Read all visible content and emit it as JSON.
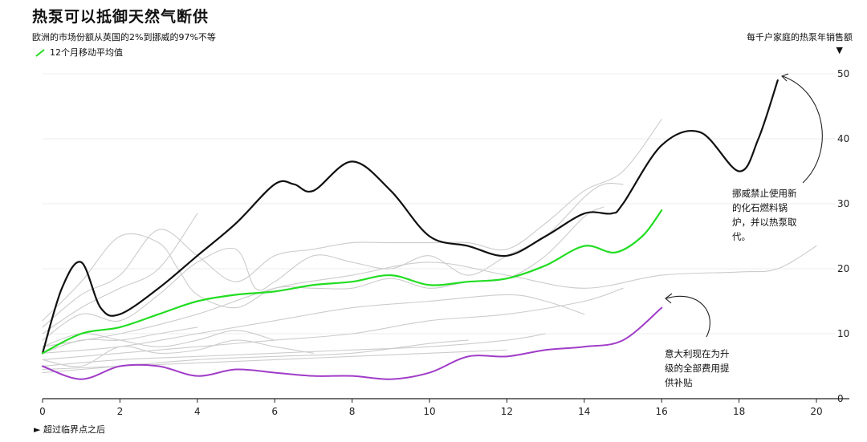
{
  "title": "热泵可以抵御天然气断供",
  "subtitle": "欧洲的市场份额从英国的2%到挪威的97%不等",
  "legend": {
    "label": "12个月移动平均值",
    "color": "#22dd22"
  },
  "ylabel": "每千户家庭的热泵年销售额",
  "ylabel_arrow": "▼",
  "xfoot": "► 超过临界点之后",
  "annotations": {
    "norway": "挪威禁止使用新的化石燃料锅炉，并以热泵取代。",
    "italy": "意大利现在为升级的全部费用提供补贴"
  },
  "chart_data": {
    "type": "line",
    "title": "热泵可以抵御天然气断供",
    "ylabel": "每千户家庭的热泵年销售额",
    "xlabel": "超过临界点之后",
    "xlim": [
      0,
      21
    ],
    "ylim": [
      0,
      50
    ],
    "x_ticks": [
      0,
      2,
      4,
      6,
      8,
      10,
      12,
      14,
      16,
      18,
      20
    ],
    "y_ticks": [
      0,
      10,
      20,
      30,
      40,
      50
    ],
    "grid": "horizontal",
    "series": [
      {
        "color": "#111111",
        "width": 2.2,
        "points": [
          [
            0,
            7
          ],
          [
            0.5,
            17
          ],
          [
            1,
            21
          ],
          [
            1.5,
            14
          ],
          [
            2,
            13
          ],
          [
            3,
            17
          ],
          [
            4,
            22
          ],
          [
            5,
            27
          ],
          [
            6,
            33
          ],
          [
            6.5,
            33
          ],
          [
            7,
            32
          ],
          [
            8,
            36.5
          ],
          [
            9,
            32
          ],
          [
            10,
            25
          ],
          [
            11,
            23.5
          ],
          [
            12,
            22
          ],
          [
            13,
            25
          ],
          [
            14,
            28.5
          ],
          [
            14.7,
            28.5
          ],
          [
            15,
            30
          ],
          [
            16,
            39
          ],
          [
            17,
            41
          ],
          [
            18,
            35
          ],
          [
            18.5,
            40
          ],
          [
            19,
            49
          ]
        ]
      },
      {
        "name": "12个月移动平均值",
        "color": "#22dd22",
        "width": 2.2,
        "points": [
          [
            0,
            7
          ],
          [
            1,
            10
          ],
          [
            2,
            11
          ],
          [
            3,
            13
          ],
          [
            4,
            15
          ],
          [
            5,
            16
          ],
          [
            6,
            16.5
          ],
          [
            7,
            17.5
          ],
          [
            8,
            18
          ],
          [
            9,
            19
          ],
          [
            10,
            17.5
          ],
          [
            11,
            18
          ],
          [
            12,
            18.5
          ],
          [
            13,
            20.5
          ],
          [
            14,
            23.5
          ],
          [
            14.8,
            22.5
          ],
          [
            15.5,
            25
          ],
          [
            16,
            29
          ]
        ]
      },
      {
        "color": "#a03cc8",
        "width": 2,
        "points": [
          [
            0,
            5
          ],
          [
            1,
            3
          ],
          [
            2,
            5
          ],
          [
            3,
            5
          ],
          [
            4,
            3.5
          ],
          [
            5,
            4.5
          ],
          [
            6,
            4
          ],
          [
            7,
            3.5
          ],
          [
            8,
            3.5
          ],
          [
            9,
            3
          ],
          [
            10,
            4
          ],
          [
            11,
            6.5
          ],
          [
            12,
            6.5
          ],
          [
            13,
            7.5
          ],
          [
            14,
            8
          ],
          [
            15,
            9
          ],
          [
            16,
            14
          ]
        ]
      },
      {
        "color": "#cccccc",
        "width": 1.1,
        "points": [
          [
            0,
            11
          ],
          [
            1,
            16
          ],
          [
            2,
            19
          ],
          [
            3,
            26
          ],
          [
            4,
            22
          ],
          [
            5,
            18
          ],
          [
            6,
            22
          ],
          [
            7,
            23
          ],
          [
            8,
            24
          ],
          [
            9,
            24
          ],
          [
            10,
            24
          ],
          [
            11,
            24
          ],
          [
            12,
            23
          ],
          [
            13,
            27
          ],
          [
            14,
            32
          ],
          [
            15,
            35
          ],
          [
            16,
            43
          ]
        ]
      },
      {
        "color": "#cccccc",
        "width": 1.1,
        "points": [
          [
            0,
            12
          ],
          [
            1,
            18
          ],
          [
            2,
            25
          ],
          [
            3,
            24
          ],
          [
            3.5,
            20
          ],
          [
            4,
            16
          ],
          [
            5,
            14
          ],
          [
            6,
            17
          ],
          [
            7,
            17
          ],
          [
            8,
            17
          ],
          [
            9,
            18.5
          ],
          [
            10,
            17
          ],
          [
            11,
            18
          ],
          [
            12,
            18.5
          ],
          [
            13,
            22
          ],
          [
            14,
            28
          ],
          [
            14.5,
            29.5
          ]
        ]
      },
      {
        "color": "#cccccc",
        "width": 1.1,
        "points": [
          [
            0,
            9
          ],
          [
            1,
            13
          ],
          [
            2,
            12
          ],
          [
            3,
            16
          ],
          [
            4,
            21
          ],
          [
            5,
            23
          ],
          [
            5.5,
            17
          ],
          [
            6,
            18
          ],
          [
            7,
            22
          ],
          [
            8,
            21
          ],
          [
            9,
            20
          ],
          [
            10,
            22
          ],
          [
            11,
            19
          ],
          [
            12,
            22
          ],
          [
            13,
            25
          ],
          [
            14,
            31
          ],
          [
            14.5,
            33
          ],
          [
            15,
            33
          ]
        ]
      },
      {
        "color": "#cccccc",
        "width": 1.1,
        "points": [
          [
            0,
            10
          ],
          [
            1,
            14
          ],
          [
            2,
            17
          ],
          [
            3,
            20
          ],
          [
            4,
            28.5
          ]
        ]
      },
      {
        "color": "#cccccc",
        "width": 1.1,
        "points": [
          [
            0,
            8
          ],
          [
            2,
            10
          ],
          [
            4,
            13
          ],
          [
            6,
            17
          ],
          [
            8,
            19
          ],
          [
            10,
            21
          ],
          [
            12,
            19
          ],
          [
            14,
            17
          ],
          [
            16,
            19
          ],
          [
            18,
            19.5
          ],
          [
            19,
            20
          ],
          [
            20,
            23.5
          ]
        ]
      },
      {
        "color": "#cccccc",
        "width": 1.1,
        "points": [
          [
            0,
            7
          ],
          [
            2,
            8
          ],
          [
            4,
            10
          ],
          [
            6,
            12
          ],
          [
            8,
            14
          ],
          [
            10,
            15
          ],
          [
            12,
            16
          ],
          [
            13,
            15
          ],
          [
            14,
            13
          ]
        ]
      },
      {
        "color": "#cccccc",
        "width": 1.1,
        "points": [
          [
            0,
            6
          ],
          [
            2,
            7
          ],
          [
            4,
            8
          ],
          [
            6,
            9
          ],
          [
            8,
            10
          ],
          [
            10,
            12
          ],
          [
            12,
            13
          ],
          [
            14,
            15
          ],
          [
            15,
            17
          ]
        ]
      },
      {
        "color": "#cccccc",
        "width": 1.1,
        "points": [
          [
            0,
            5
          ],
          [
            2,
            6
          ],
          [
            4,
            6.5
          ],
          [
            6,
            7
          ],
          [
            8,
            7.5
          ],
          [
            10,
            8
          ],
          [
            12,
            9
          ],
          [
            13,
            10
          ]
        ]
      },
      {
        "color": "#cccccc",
        "width": 1.1,
        "points": [
          [
            0,
            4.5
          ],
          [
            2,
            5
          ],
          [
            4,
            5.5
          ],
          [
            6,
            6
          ],
          [
            8,
            6.5
          ],
          [
            10,
            7
          ],
          [
            12,
            7.5
          ]
        ]
      },
      {
        "color": "#cccccc",
        "width": 1.1,
        "points": [
          [
            0,
            6
          ],
          [
            1,
            5
          ],
          [
            2,
            8
          ],
          [
            3,
            7
          ],
          [
            4,
            7.5
          ],
          [
            5,
            9
          ],
          [
            6,
            8
          ],
          [
            7,
            7
          ]
        ]
      },
      {
        "color": "#cccccc",
        "width": 1.1,
        "points": [
          [
            0,
            8
          ],
          [
            1,
            10
          ],
          [
            2,
            9
          ],
          [
            3,
            8
          ],
          [
            4,
            9
          ],
          [
            5,
            10.5
          ],
          [
            6,
            9
          ]
        ]
      },
      {
        "color": "#cccccc",
        "width": 1.1,
        "points": [
          [
            0,
            4
          ],
          [
            2,
            5
          ],
          [
            4,
            6
          ],
          [
            6,
            6.5
          ],
          [
            8,
            7
          ],
          [
            10,
            8.5
          ],
          [
            11,
            9
          ]
        ]
      },
      {
        "color": "#cccccc",
        "width": 1.1,
        "points": [
          [
            0,
            7
          ],
          [
            1,
            9
          ],
          [
            2,
            9
          ],
          [
            3,
            10
          ],
          [
            4,
            11
          ]
        ]
      }
    ]
  }
}
